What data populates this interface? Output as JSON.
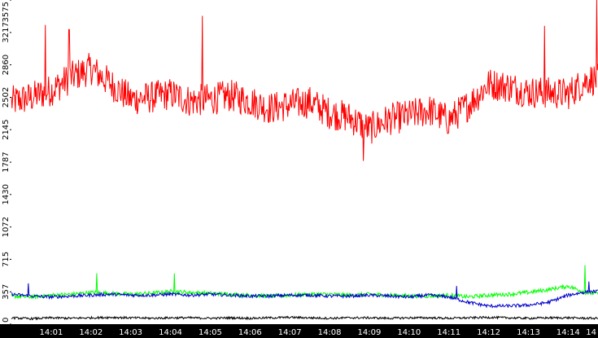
{
  "chart_data": {
    "type": "line",
    "title": "",
    "xlabel": "",
    "ylabel": "",
    "ylim": [
      0,
      3575
    ],
    "grid": false,
    "legend": "none",
    "y_ticks": [
      0,
      357,
      715,
      1072,
      1430,
      1787,
      2145,
      2502,
      2860,
      3217,
      3575
    ],
    "x_ticks": [
      "14:01",
      "14:02",
      "14:03",
      "14:04",
      "14:05",
      "14:06",
      "14:07",
      "14:08",
      "14:09",
      "14:10",
      "14:11",
      "14:12",
      "14:13",
      "14:14",
      "14"
    ],
    "colors": {
      "background": "#ffffff",
      "x_axis_band": "#000000",
      "x_tick_text": "#ffffff",
      "y_tick_text": "#000000"
    },
    "series": [
      {
        "color": "#ff0000",
        "x_minutes": [
          0.0,
          0.5,
          1.0,
          1.5,
          2.0,
          2.5,
          3.0,
          3.5,
          4.0,
          4.5,
          5.0,
          5.5,
          6.0,
          6.5,
          7.0,
          7.5,
          8.0,
          8.5,
          9.0,
          9.5,
          10.0,
          10.5,
          11.0,
          11.5,
          12.0,
          12.5,
          13.0,
          13.5,
          14.0,
          14.5
        ],
        "values": [
          2450,
          2500,
          2580,
          2720,
          2820,
          2650,
          2480,
          2500,
          2540,
          2460,
          2480,
          2520,
          2460,
          2380,
          2420,
          2450,
          2330,
          2280,
          2150,
          2260,
          2300,
          2360,
          2250,
          2420,
          2650,
          2620,
          2560,
          2550,
          2540,
          2700
        ],
        "spikes": [
          {
            "x": 0.85,
            "y": 3300
          },
          {
            "x": 1.45,
            "y": 3250
          },
          {
            "x": 4.8,
            "y": 3400
          },
          {
            "x": 8.85,
            "y": 1800
          },
          {
            "x": 13.4,
            "y": 3290
          },
          {
            "x": 14.72,
            "y": 3575
          }
        ]
      },
      {
        "color": "#00ff00",
        "x_minutes": [
          0.0,
          0.5,
          1.0,
          1.5,
          2.0,
          2.5,
          3.0,
          3.5,
          4.0,
          4.5,
          5.0,
          5.5,
          6.0,
          6.5,
          7.0,
          7.5,
          8.0,
          8.5,
          9.0,
          9.5,
          10.0,
          10.5,
          11.0,
          11.5,
          12.0,
          12.5,
          13.0,
          13.5,
          14.0,
          14.5
        ],
        "values": [
          310,
          300,
          320,
          330,
          350,
          340,
          330,
          340,
          360,
          350,
          340,
          330,
          320,
          310,
          320,
          330,
          330,
          320,
          330,
          320,
          310,
          310,
          320,
          300,
          320,
          330,
          350,
          380,
          420,
          340
        ],
        "spikes": [
          {
            "x": 2.15,
            "y": 560
          },
          {
            "x": 4.1,
            "y": 560
          },
          {
            "x": 14.42,
            "y": 650
          }
        ]
      },
      {
        "color": "#0000cc",
        "x_minutes": [
          0.0,
          0.5,
          1.0,
          1.5,
          2.0,
          2.5,
          3.0,
          3.5,
          4.0,
          4.5,
          5.0,
          5.5,
          6.0,
          6.5,
          7.0,
          7.5,
          8.0,
          8.5,
          9.0,
          9.5,
          10.0,
          10.5,
          11.0,
          11.5,
          12.0,
          12.5,
          13.0,
          13.5,
          14.0,
          14.5
        ],
        "values": [
          330,
          310,
          300,
          310,
          320,
          330,
          320,
          320,
          330,
          320,
          330,
          320,
          310,
          310,
          320,
          320,
          310,
          310,
          320,
          310,
          300,
          320,
          300,
          240,
          200,
          200,
          210,
          240,
          320,
          360
        ],
        "spikes": [
          {
            "x": 0.42,
            "y": 450
          },
          {
            "x": 11.2,
            "y": 420
          },
          {
            "x": 14.52,
            "y": 470
          }
        ]
      },
      {
        "color": "#000000",
        "x_minutes": [
          0.0,
          0.5,
          1.0,
          1.5,
          2.0,
          2.5,
          3.0,
          3.5,
          4.0,
          4.5,
          5.0,
          5.5,
          6.0,
          6.5,
          7.0,
          7.5,
          8.0,
          8.5,
          9.0,
          9.5,
          10.0,
          10.5,
          11.0,
          11.5,
          12.0,
          12.5,
          13.0,
          13.5,
          14.0,
          14.5
        ],
        "values": [
          70,
          60,
          70,
          65,
          70,
          75,
          70,
          65,
          70,
          70,
          65,
          70,
          65,
          70,
          75,
          70,
          65,
          70,
          70,
          65,
          70,
          70,
          65,
          70,
          75,
          70,
          65,
          70,
          70,
          65
        ]
      }
    ]
  }
}
